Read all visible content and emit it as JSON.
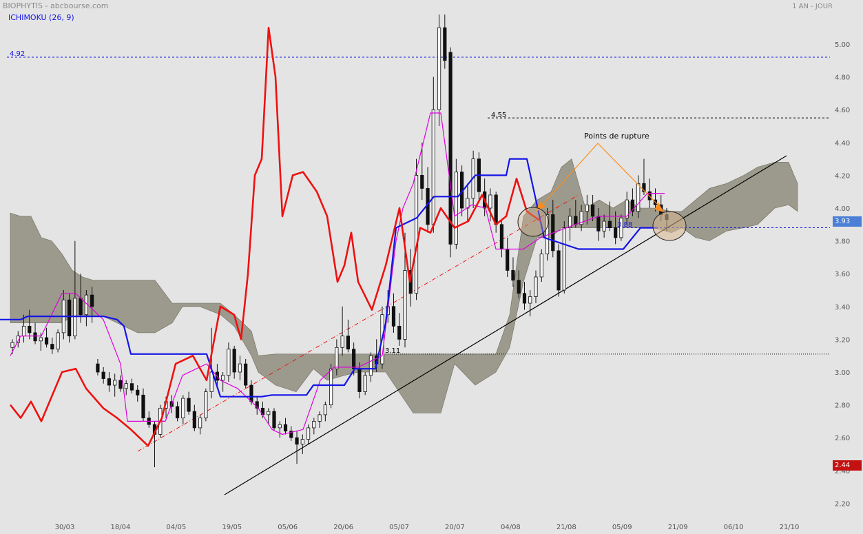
{
  "header": {
    "left_title": "BIOPHYTIS - abcbourse.com",
    "indicator_label": "ICHIMOKU (26, 9)",
    "right_title": "1 AN - JOUR"
  },
  "annotations": {
    "rupture_text": "Points de rupture",
    "level_492": "4.92",
    "level_455": "4.55",
    "level_311": "3.11",
    "level_388": "3.88"
  },
  "price_badges": {
    "last_price": "3.93",
    "low_price": "2.44"
  },
  "colors": {
    "background": "#e4e4e4",
    "cloud": "#8f8d7c",
    "kijun": "#1414e6",
    "tenkan": "#e000e0",
    "chikou": "#ee1111",
    "support_line": "#000000",
    "trend_dashdot": "#ee1111",
    "annotation": "#ff8c1a",
    "badge_last": "#4b7fd6",
    "badge_low": "#c41212"
  },
  "chart_data": {
    "type": "candlestick",
    "y_range": [
      2.2,
      5.2
    ],
    "y_ticks": [
      "2.20",
      "2.40",
      "2.60",
      "2.80",
      "3.00",
      "3.20",
      "3.40",
      "3.60",
      "3.80",
      "4.00",
      "4.20",
      "4.40",
      "4.60",
      "4.80",
      "5.00"
    ],
    "x_ticks": [
      "30/03",
      "18/04",
      "04/05",
      "19/05",
      "05/06",
      "20/06",
      "05/07",
      "20/07",
      "04/08",
      "21/08",
      "05/09",
      "21/09",
      "06/10",
      "21/10"
    ],
    "horizontal_levels": [
      4.92,
      4.55,
      3.11,
      3.88
    ],
    "candles_ohlc": [
      [
        3.15,
        3.2,
        3.11,
        3.18
      ],
      [
        3.18,
        3.25,
        3.15,
        3.22
      ],
      [
        3.22,
        3.35,
        3.18,
        3.28
      ],
      [
        3.28,
        3.38,
        3.2,
        3.24
      ],
      [
        3.24,
        3.3,
        3.17,
        3.19
      ],
      [
        3.19,
        3.24,
        3.13,
        3.21
      ],
      [
        3.21,
        3.27,
        3.15,
        3.17
      ],
      [
        3.17,
        3.21,
        3.11,
        3.14
      ],
      [
        3.14,
        3.26,
        3.12,
        3.24
      ],
      [
        3.24,
        3.5,
        3.2,
        3.44
      ],
      [
        3.44,
        3.48,
        3.18,
        3.22
      ],
      [
        3.22,
        3.8,
        3.2,
        3.45
      ],
      [
        3.45,
        3.6,
        3.3,
        3.35
      ],
      [
        3.35,
        3.5,
        3.28,
        3.47
      ],
      [
        3.47,
        3.52,
        3.3,
        3.4
      ],
      [
        3.05,
        3.08,
        2.98,
        3.0
      ],
      [
        3.0,
        3.03,
        2.93,
        2.96
      ],
      [
        2.96,
        3.0,
        2.88,
        2.92
      ],
      [
        2.92,
        2.99,
        2.85,
        2.95
      ],
      [
        2.95,
        2.98,
        2.88,
        2.9
      ],
      [
        2.9,
        2.95,
        2.86,
        2.93
      ],
      [
        2.93,
        2.96,
        2.87,
        2.89
      ],
      [
        2.89,
        2.92,
        2.82,
        2.86
      ],
      [
        2.86,
        2.9,
        2.7,
        2.72
      ],
      [
        2.72,
        2.76,
        2.66,
        2.68
      ],
      [
        2.68,
        2.7,
        2.42,
        2.62
      ],
      [
        2.62,
        2.8,
        2.6,
        2.78
      ],
      [
        2.78,
        2.85,
        2.72,
        2.82
      ],
      [
        2.82,
        2.86,
        2.75,
        2.79
      ],
      [
        2.79,
        2.82,
        2.7,
        2.72
      ],
      [
        2.72,
        2.86,
        2.68,
        2.84
      ],
      [
        2.84,
        2.88,
        2.74,
        2.76
      ],
      [
        2.76,
        2.8,
        2.64,
        2.66
      ],
      [
        2.66,
        2.74,
        2.62,
        2.72
      ],
      [
        2.72,
        2.9,
        2.7,
        2.88
      ],
      [
        2.88,
        3.27,
        2.84,
        3.0
      ],
      [
        3.0,
        3.05,
        2.9,
        2.95
      ],
      [
        2.95,
        3.0,
        2.88,
        2.98
      ],
      [
        2.98,
        3.18,
        2.94,
        3.14
      ],
      [
        3.14,
        3.16,
        2.96,
        3.0
      ],
      [
        3.0,
        3.1,
        2.95,
        3.05
      ],
      [
        3.05,
        3.08,
        2.9,
        2.92
      ],
      [
        2.92,
        2.95,
        2.8,
        2.82
      ],
      [
        2.82,
        2.85,
        2.74,
        2.78
      ],
      [
        2.78,
        2.82,
        2.72,
        2.74
      ],
      [
        2.74,
        2.78,
        2.68,
        2.76
      ],
      [
        2.76,
        2.78,
        2.64,
        2.66
      ],
      [
        2.66,
        2.7,
        2.6,
        2.68
      ],
      [
        2.68,
        2.72,
        2.62,
        2.64
      ],
      [
        2.64,
        2.67,
        2.58,
        2.6
      ],
      [
        2.6,
        2.64,
        2.44,
        2.56
      ],
      [
        2.56,
        2.62,
        2.5,
        2.59
      ],
      [
        2.59,
        2.68,
        2.56,
        2.66
      ],
      [
        2.66,
        2.72,
        2.62,
        2.7
      ],
      [
        2.7,
        2.76,
        2.66,
        2.74
      ],
      [
        2.74,
        2.82,
        2.7,
        2.8
      ],
      [
        2.8,
        3.05,
        2.78,
        3.02
      ],
      [
        3.02,
        3.2,
        2.98,
        3.15
      ],
      [
        3.15,
        3.4,
        3.1,
        3.22
      ],
      [
        3.22,
        3.32,
        3.12,
        3.14
      ],
      [
        3.14,
        3.18,
        2.98,
        3.02
      ],
      [
        3.02,
        3.06,
        2.84,
        2.88
      ],
      [
        2.88,
        3.0,
        2.86,
        2.98
      ],
      [
        2.98,
        3.12,
        2.94,
        3.1
      ],
      [
        3.1,
        3.2,
        3.0,
        3.05
      ],
      [
        3.05,
        3.4,
        3.02,
        3.35
      ],
      [
        3.35,
        3.5,
        3.3,
        3.4
      ],
      [
        3.4,
        3.48,
        3.24,
        3.28
      ],
      [
        3.28,
        3.36,
        3.16,
        3.2
      ],
      [
        3.2,
        3.85,
        3.15,
        3.62
      ],
      [
        3.62,
        3.75,
        3.4,
        3.48
      ],
      [
        3.48,
        4.3,
        3.44,
        4.2
      ],
      [
        4.2,
        4.4,
        4.05,
        4.12
      ],
      [
        4.12,
        4.25,
        3.85,
        3.9
      ],
      [
        3.9,
        4.8,
        3.85,
        4.6
      ],
      [
        4.6,
        5.18,
        4.5,
        5.1
      ],
      [
        5.1,
        5.18,
        4.85,
        4.9
      ],
      [
        4.95,
        4.98,
        3.7,
        3.78
      ],
      [
        3.78,
        4.3,
        3.75,
        4.22
      ],
      [
        4.22,
        4.26,
        3.95,
        4.0
      ],
      [
        4.0,
        4.15,
        3.92,
        4.06
      ],
      [
        4.06,
        4.35,
        4.0,
        4.3
      ],
      [
        4.3,
        4.34,
        4.05,
        4.1
      ],
      [
        4.1,
        4.18,
        3.95,
        4.0
      ],
      [
        4.0,
        4.12,
        3.92,
        4.08
      ],
      [
        4.08,
        4.1,
        3.85,
        3.9
      ],
      [
        3.9,
        3.92,
        3.7,
        3.75
      ],
      [
        3.75,
        3.82,
        3.58,
        3.62
      ],
      [
        3.62,
        3.7,
        3.52,
        3.56
      ],
      [
        3.56,
        3.62,
        3.45,
        3.48
      ],
      [
        3.48,
        3.55,
        3.38,
        3.42
      ],
      [
        3.42,
        3.5,
        3.34,
        3.46
      ],
      [
        3.46,
        3.62,
        3.42,
        3.58
      ],
      [
        3.58,
        3.75,
        3.55,
        3.72
      ],
      [
        3.72,
        4.0,
        3.68,
        3.96
      ],
      [
        3.96,
        4.05,
        3.7,
        3.74
      ],
      [
        3.74,
        3.78,
        3.46,
        3.5
      ],
      [
        3.5,
        3.92,
        3.48,
        3.88
      ],
      [
        3.88,
        4.0,
        3.8,
        3.95
      ],
      [
        3.95,
        4.05,
        3.88,
        3.9
      ],
      [
        3.9,
        4.02,
        3.86,
        3.98
      ],
      [
        3.98,
        4.08,
        3.9,
        4.02
      ],
      [
        4.02,
        4.08,
        3.92,
        3.95
      ],
      [
        3.95,
        4.0,
        3.8,
        3.86
      ],
      [
        3.86,
        3.96,
        3.82,
        3.92
      ],
      [
        3.92,
        4.04,
        3.86,
        3.88
      ],
      [
        3.88,
        3.98,
        3.78,
        3.82
      ],
      [
        3.82,
        3.96,
        3.8,
        3.94
      ],
      [
        3.94,
        4.1,
        3.9,
        4.05
      ],
      [
        4.05,
        4.12,
        3.95,
        3.98
      ],
      [
        3.98,
        4.2,
        3.94,
        4.15
      ],
      [
        4.15,
        4.3,
        4.08,
        4.1
      ],
      [
        4.1,
        4.18,
        4.0,
        4.05
      ],
      [
        4.05,
        4.12,
        3.98,
        4.02
      ],
      [
        4.02,
        4.08,
        3.92,
        3.96
      ],
      [
        3.96,
        4.0,
        3.86,
        3.93
      ]
    ],
    "kijun": [
      [
        0,
        3.32
      ],
      [
        30,
        3.32
      ],
      [
        40,
        3.34
      ],
      [
        150,
        3.34
      ],
      [
        170,
        3.32
      ],
      [
        180,
        3.28
      ],
      [
        190,
        3.11
      ],
      [
        300,
        3.11
      ],
      [
        320,
        2.85
      ],
      [
        380,
        2.85
      ],
      [
        395,
        2.86
      ],
      [
        445,
        2.86
      ],
      [
        455,
        2.92
      ],
      [
        500,
        2.92
      ],
      [
        515,
        3.02
      ],
      [
        545,
        3.02
      ],
      [
        560,
        3.3
      ],
      [
        575,
        3.88
      ],
      [
        605,
        3.94
      ],
      [
        630,
        4.07
      ],
      [
        665,
        4.07
      ],
      [
        690,
        4.2
      ],
      [
        735,
        4.2
      ],
      [
        740,
        4.3
      ],
      [
        765,
        4.3
      ],
      [
        790,
        3.82
      ],
      [
        840,
        3.75
      ],
      [
        905,
        3.75
      ],
      [
        930,
        3.88
      ],
      [
        955,
        3.88
      ]
    ],
    "tenkan": [
      [
        15,
        3.1
      ],
      [
        30,
        3.22
      ],
      [
        60,
        3.22
      ],
      [
        90,
        3.48
      ],
      [
        110,
        3.48
      ],
      [
        150,
        3.32
      ],
      [
        175,
        3.05
      ],
      [
        185,
        2.7
      ],
      [
        240,
        2.7
      ],
      [
        265,
        2.98
      ],
      [
        300,
        3.05
      ],
      [
        320,
        2.95
      ],
      [
        345,
        2.9
      ],
      [
        375,
        2.78
      ],
      [
        395,
        2.65
      ],
      [
        410,
        2.62
      ],
      [
        440,
        2.65
      ],
      [
        465,
        2.95
      ],
      [
        485,
        3.03
      ],
      [
        520,
        3.03
      ],
      [
        555,
        3.1
      ],
      [
        575,
        3.8
      ],
      [
        585,
        4.0
      ],
      [
        600,
        4.15
      ],
      [
        625,
        4.58
      ],
      [
        640,
        4.58
      ],
      [
        660,
        3.95
      ],
      [
        685,
        4.02
      ],
      [
        705,
        4.0
      ],
      [
        720,
        3.75
      ],
      [
        760,
        3.75
      ],
      [
        785,
        3.82
      ],
      [
        835,
        3.9
      ],
      [
        870,
        3.95
      ],
      [
        910,
        3.95
      ],
      [
        940,
        4.09
      ],
      [
        965,
        4.09
      ]
    ],
    "chikou": [
      [
        15,
        2.8
      ],
      [
        30,
        2.72
      ],
      [
        45,
        2.82
      ],
      [
        60,
        2.7
      ],
      [
        90,
        3.0
      ],
      [
        110,
        3.02
      ],
      [
        125,
        2.9
      ],
      [
        150,
        2.78
      ],
      [
        170,
        2.72
      ],
      [
        190,
        2.65
      ],
      [
        215,
        2.55
      ],
      [
        235,
        2.72
      ],
      [
        255,
        3.05
      ],
      [
        280,
        3.1
      ],
      [
        300,
        2.95
      ],
      [
        320,
        3.4
      ],
      [
        340,
        3.35
      ],
      [
        350,
        3.2
      ],
      [
        360,
        3.6
      ],
      [
        370,
        4.2
      ],
      [
        380,
        4.3
      ],
      [
        390,
        5.1
      ],
      [
        400,
        4.8
      ],
      [
        410,
        3.95
      ],
      [
        425,
        4.2
      ],
      [
        440,
        4.22
      ],
      [
        460,
        4.1
      ],
      [
        475,
        3.95
      ],
      [
        490,
        3.55
      ],
      [
        500,
        3.65
      ],
      [
        510,
        3.85
      ],
      [
        520,
        3.55
      ],
      [
        540,
        3.38
      ],
      [
        560,
        3.65
      ],
      [
        580,
        4.0
      ],
      [
        595,
        3.55
      ],
      [
        610,
        3.88
      ],
      [
        625,
        3.85
      ],
      [
        640,
        4.0
      ],
      [
        660,
        3.88
      ],
      [
        680,
        3.92
      ],
      [
        700,
        4.08
      ],
      [
        720,
        3.9
      ],
      [
        735,
        3.95
      ],
      [
        750,
        4.18
      ],
      [
        765,
        3.98
      ],
      [
        785,
        3.92
      ]
    ],
    "cloud": [
      [
        15,
        3.97
      ],
      [
        30,
        3.95
      ],
      [
        45,
        3.95
      ],
      [
        60,
        3.82
      ],
      [
        75,
        3.8
      ],
      [
        90,
        3.72
      ],
      [
        105,
        3.62
      ],
      [
        120,
        3.58
      ],
      [
        135,
        3.56
      ],
      [
        150,
        3.56
      ],
      [
        170,
        3.56
      ],
      [
        200,
        3.56
      ],
      [
        225,
        3.56
      ],
      [
        250,
        3.42
      ],
      [
        265,
        3.42
      ],
      [
        290,
        3.42
      ],
      [
        320,
        3.42
      ],
      [
        340,
        3.35
      ],
      [
        365,
        3.25
      ],
      [
        375,
        3.1
      ],
      [
        400,
        3.11
      ],
      [
        430,
        3.11
      ],
      [
        455,
        3.11
      ],
      [
        475,
        3.11
      ],
      [
        500,
        3.11
      ],
      [
        520,
        3.11
      ],
      [
        560,
        3.11
      ],
      [
        600,
        3.11
      ],
      [
        640,
        3.11
      ],
      [
        660,
        3.11
      ],
      [
        690,
        3.11
      ],
      [
        720,
        3.11
      ],
      [
        740,
        3.35
      ],
      [
        760,
        3.95
      ],
      [
        780,
        4.05
      ],
      [
        800,
        4.1
      ],
      [
        815,
        4.25
      ],
      [
        830,
        4.3
      ],
      [
        850,
        4.0
      ],
      [
        870,
        4.05
      ],
      [
        890,
        4.0
      ],
      [
        910,
        4.05
      ],
      [
        930,
        4.0
      ],
      [
        950,
        4.0
      ],
      [
        975,
        3.98
      ],
      [
        990,
        3.98
      ],
      [
        1010,
        4.05
      ],
      [
        1030,
        4.12
      ],
      [
        1055,
        4.15
      ],
      [
        1080,
        4.2
      ],
      [
        1100,
        4.25
      ],
      [
        1125,
        4.28
      ],
      [
        1145,
        4.28
      ],
      [
        1158,
        4.15
      ]
    ],
    "cloud_lower": [
      [
        15,
        3.3
      ],
      [
        30,
        3.3
      ],
      [
        45,
        3.3
      ],
      [
        60,
        3.3
      ],
      [
        75,
        3.3
      ],
      [
        90,
        3.3
      ],
      [
        105,
        3.34
      ],
      [
        120,
        3.34
      ],
      [
        135,
        3.34
      ],
      [
        150,
        3.34
      ],
      [
        170,
        3.3
      ],
      [
        200,
        3.24
      ],
      [
        225,
        3.24
      ],
      [
        250,
        3.3
      ],
      [
        265,
        3.4
      ],
      [
        290,
        3.4
      ],
      [
        320,
        3.35
      ],
      [
        340,
        3.28
      ],
      [
        365,
        3.1
      ],
      [
        375,
        3.0
      ],
      [
        400,
        2.92
      ],
      [
        430,
        2.88
      ],
      [
        455,
        3.02
      ],
      [
        475,
        2.95
      ],
      [
        500,
        2.98
      ],
      [
        520,
        3.0
      ],
      [
        560,
        3.0
      ],
      [
        600,
        2.75
      ],
      [
        640,
        2.75
      ],
      [
        660,
        3.05
      ],
      [
        690,
        2.92
      ],
      [
        720,
        3.0
      ],
      [
        740,
        3.15
      ],
      [
        760,
        3.55
      ],
      [
        780,
        3.82
      ],
      [
        800,
        3.82
      ],
      [
        815,
        3.88
      ],
      [
        830,
        3.88
      ],
      [
        850,
        3.88
      ],
      [
        870,
        3.88
      ],
      [
        890,
        3.88
      ],
      [
        910,
        3.88
      ],
      [
        930,
        3.88
      ],
      [
        950,
        3.88
      ],
      [
        975,
        3.85
      ],
      [
        990,
        3.88
      ],
      [
        1010,
        3.82
      ],
      [
        1030,
        3.8
      ],
      [
        1055,
        3.86
      ],
      [
        1080,
        3.88
      ],
      [
        1100,
        3.9
      ],
      [
        1125,
        4.0
      ],
      [
        1145,
        4.02
      ],
      [
        1158,
        3.98
      ]
    ]
  }
}
